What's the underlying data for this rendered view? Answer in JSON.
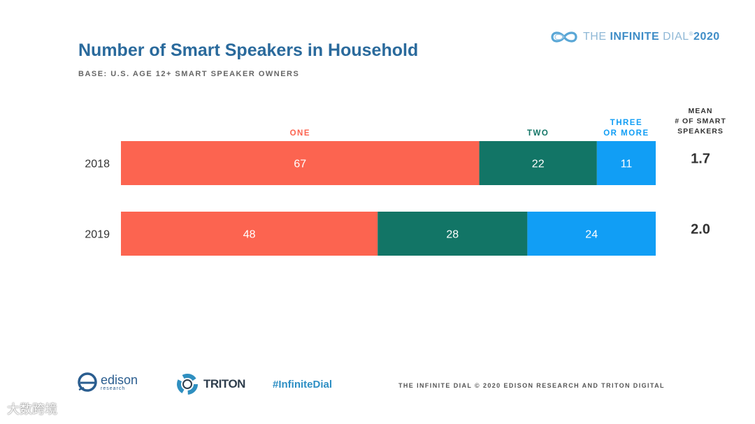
{
  "brand": {
    "word1": "THE ",
    "word2": "INFINITE",
    "word3": " DIAL",
    "reg": "®",
    "year": "2020",
    "icon": "infinity-icon"
  },
  "title": "Number of Smart Speakers in Household",
  "subtitle": "BASE: U.S. AGE 12+ SMART SPEAKER OWNERS",
  "footer": {
    "edison": "edison",
    "edison_sub": "research",
    "triton": "TRITON",
    "hashtag": "#InfiniteDial",
    "copyright": "THE INFINITE DIAL   © 2020 EDISON RESEARCH AND TRITON DIGITAL"
  },
  "watermark": "大数跨境",
  "colors": {
    "one": "#fc6450",
    "two": "#127566",
    "three": "#119ef5",
    "title": "#2a6a9c"
  },
  "chart_data": {
    "type": "bar",
    "orientation": "horizontal",
    "stacked": true,
    "title": "Number of Smart Speakers in Household",
    "categories": [
      "2018",
      "2019"
    ],
    "series": [
      {
        "name": "ONE",
        "values": [
          67,
          48
        ]
      },
      {
        "name": "TWO",
        "values": [
          22,
          28
        ]
      },
      {
        "name": "THREE OR MORE",
        "values": [
          11,
          24
        ]
      }
    ],
    "mean_header": [
      "MEAN",
      "# OF SMART",
      "SPEAKERS"
    ],
    "mean_values": [
      "1.7",
      "2.0"
    ],
    "xlim": [
      0,
      100
    ]
  }
}
